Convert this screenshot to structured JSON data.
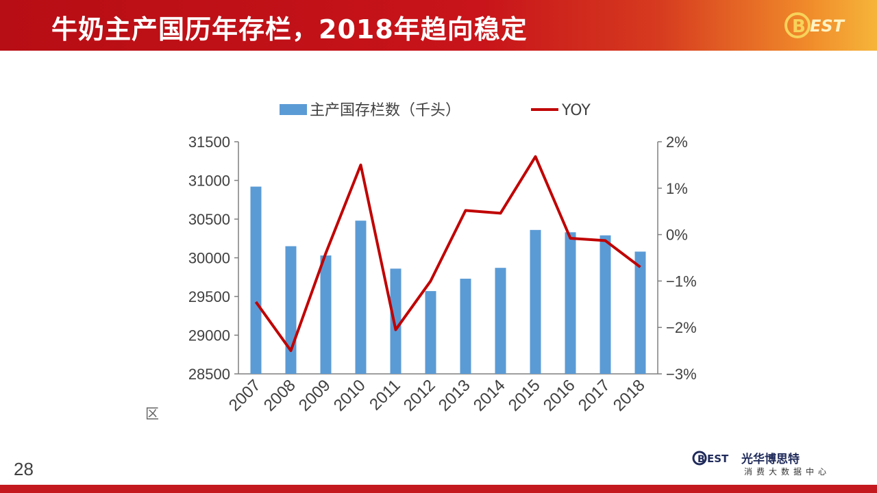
{
  "header": {
    "title": "牛奶主产国历年存栏，2018年趋向稳定"
  },
  "logo": {
    "text": "BEST"
  },
  "page_number": "28",
  "footer": {
    "brand_logo": "BEST",
    "brand_name": "光华博思特",
    "brand_sub": "消费大数据中心"
  },
  "source_mark": "区",
  "colors": {
    "bar": "#5b9bd5",
    "line": "#c00000",
    "header": "#c8141a"
  },
  "chart_data": {
    "type": "bar",
    "categories": [
      "2007",
      "2008",
      "2009",
      "2010",
      "2011",
      "2012",
      "2013",
      "2014",
      "2015",
      "2016",
      "2017",
      "2018"
    ],
    "series": [
      {
        "name": "主产国存栏数（千头）",
        "type": "bar",
        "axis": "left",
        "values": [
          30920,
          30150,
          30030,
          30480,
          29860,
          29570,
          29730,
          29870,
          30360,
          30330,
          30290,
          30080
        ]
      },
      {
        "name": "YOY",
        "type": "line",
        "axis": "right",
        "values": [
          -1.45,
          -2.5,
          -0.4,
          1.5,
          -2.05,
          -1.0,
          0.52,
          0.46,
          1.68,
          -0.08,
          -0.13,
          -0.7
        ]
      }
    ],
    "ylim": [
      28500,
      31500
    ],
    "y_ticks": [
      "28500",
      "29000",
      "29500",
      "30000",
      "30500",
      "31000",
      "31500"
    ],
    "y2lim": [
      -3,
      2
    ],
    "y2_ticks": [
      "−3%",
      "−2%",
      "−1%",
      "0%",
      "1%",
      "2%"
    ],
    "legend": "top-center"
  }
}
